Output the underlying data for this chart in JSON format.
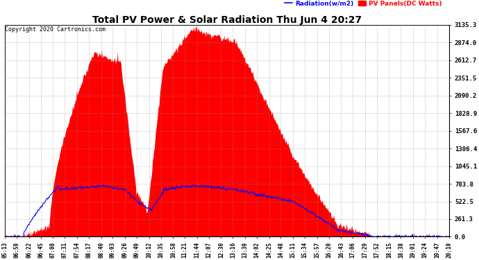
{
  "title": "Total PV Power & Solar Radiation Thu Jun 4 20:27",
  "copyright": "Copyright 2020 Cartronics.com",
  "legend_radiation": "Radiation(w/m2)",
  "legend_pv": "PV Panels(DC Watts)",
  "radiation_color": "blue",
  "pv_color": "red",
  "bg_color": "#ffffff",
  "grid_color": "#888888",
  "ymax": 3135.3,
  "ymin": 0.0,
  "yticks": [
    0.0,
    261.3,
    522.5,
    783.8,
    1045.1,
    1306.4,
    1567.6,
    1828.9,
    2090.2,
    2351.5,
    2612.7,
    2874.0,
    3135.3
  ],
  "xtick_labels": [
    "05:13",
    "06:59",
    "06:22",
    "06:45",
    "07:08",
    "07:31",
    "07:54",
    "08:17",
    "08:40",
    "09:03",
    "09:26",
    "09:49",
    "10:12",
    "10:35",
    "10:58",
    "11:21",
    "11:44",
    "12:07",
    "12:30",
    "13:16",
    "13:39",
    "14:02",
    "14:25",
    "14:48",
    "15:11",
    "15:34",
    "15:57",
    "16:20",
    "16:43",
    "17:06",
    "17:29",
    "17:52",
    "18:15",
    "18:38",
    "19:01",
    "19:24",
    "19:47",
    "20:10"
  ],
  "num_points": 760,
  "figwidth": 6.9,
  "figheight": 3.75,
  "dpi": 100
}
